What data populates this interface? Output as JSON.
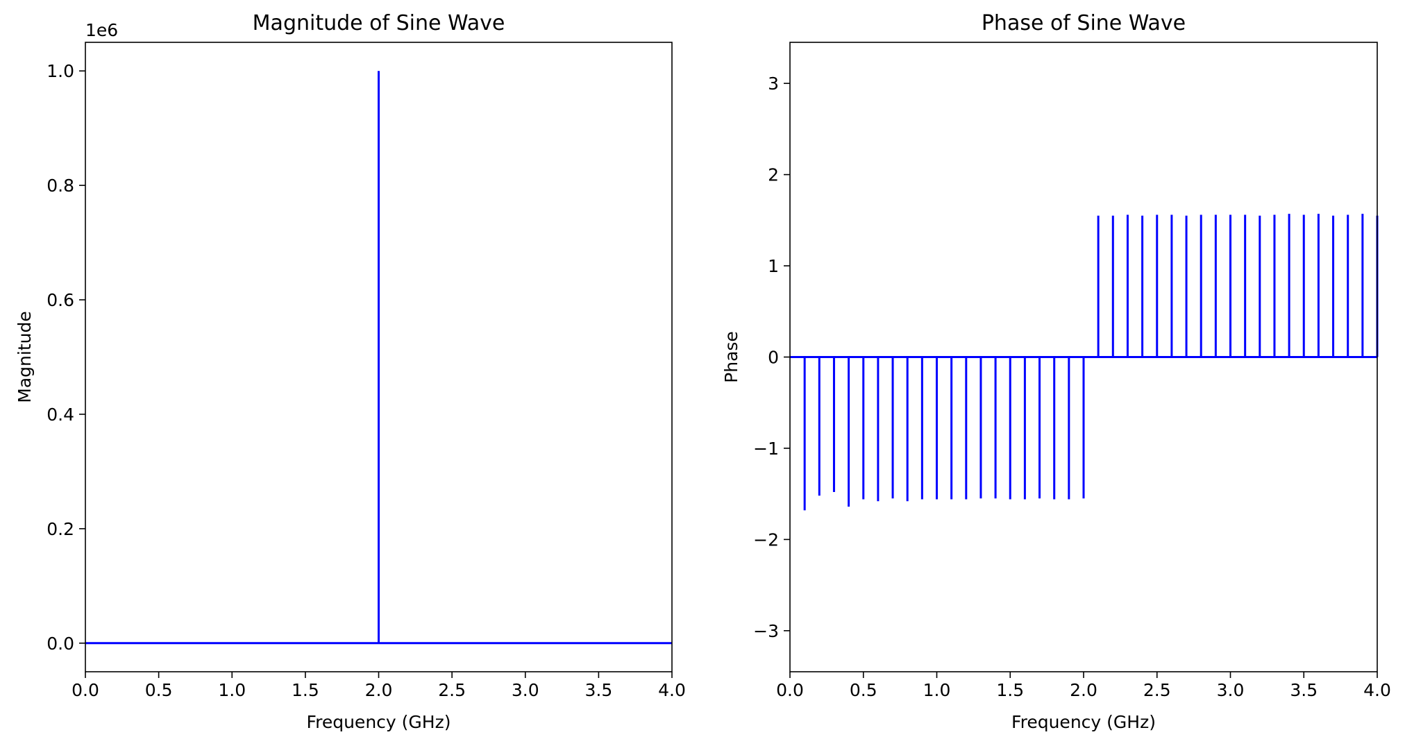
{
  "colors": {
    "stem": "#0000ff",
    "axes": "#000000",
    "background": "#ffffff"
  },
  "chart_data": [
    {
      "type": "stem",
      "title": "Magnitude of Sine Wave",
      "xlabel": "Frequency (GHz)",
      "ylabel": "Magnitude",
      "offset_label": "1e6",
      "xlim": [
        0,
        4
      ],
      "ylim": [
        -0.05,
        1.05
      ],
      "xticks": [
        0,
        0.5,
        1,
        1.5,
        2,
        2.5,
        3,
        3.5,
        4
      ],
      "xtick_labels": [
        "0.0",
        "0.5",
        "1.0",
        "1.5",
        "2.0",
        "2.5",
        "3.0",
        "3.5",
        "4.0"
      ],
      "yticks": [
        0,
        0.2,
        0.4,
        0.6,
        0.8,
        1
      ],
      "ytick_labels": [
        "0.0",
        "0.2",
        "0.4",
        "0.6",
        "0.8",
        "1.0"
      ],
      "baseline": 0,
      "series": [
        {
          "x": [
            2.0
          ],
          "y": [
            1.0
          ]
        }
      ]
    },
    {
      "type": "stem",
      "title": "Phase of Sine Wave",
      "xlabel": "Frequency (GHz)",
      "ylabel": "Phase",
      "xlim": [
        0,
        4
      ],
      "ylim": [
        -3.45,
        3.45
      ],
      "xticks": [
        0,
        0.5,
        1,
        1.5,
        2,
        2.5,
        3,
        3.5,
        4
      ],
      "xtick_labels": [
        "0.0",
        "0.5",
        "1.0",
        "1.5",
        "2.0",
        "2.5",
        "3.0",
        "3.5",
        "4.0"
      ],
      "yticks": [
        3,
        2,
        1,
        0,
        -1,
        -2,
        -3
      ],
      "ytick_labels": [
        "3",
        "2",
        "1",
        "0",
        "−1",
        "−2",
        "−3"
      ],
      "baseline": 0,
      "series": [
        {
          "x": [
            0.1,
            0.2,
            0.3,
            0.4,
            0.5,
            0.6,
            0.7,
            0.8,
            0.9,
            1.0,
            1.1,
            1.2,
            1.3,
            1.4,
            1.5,
            1.6,
            1.7,
            1.8,
            1.9,
            2.0,
            2.1,
            2.2,
            2.3,
            2.4,
            2.5,
            2.6,
            2.7,
            2.8,
            2.9,
            3.0,
            3.1,
            3.2,
            3.3,
            3.4,
            3.5,
            3.6,
            3.7,
            3.8,
            3.9,
            4.0
          ],
          "y": [
            -1.68,
            -1.52,
            -1.48,
            -1.64,
            -1.56,
            -1.58,
            -1.55,
            -1.58,
            -1.56,
            -1.56,
            -1.56,
            -1.56,
            -1.55,
            -1.55,
            -1.56,
            -1.56,
            -1.55,
            -1.56,
            -1.56,
            -1.55,
            1.55,
            1.55,
            1.56,
            1.55,
            1.56,
            1.56,
            1.55,
            1.56,
            1.56,
            1.56,
            1.56,
            1.55,
            1.56,
            1.57,
            1.56,
            1.57,
            1.55,
            1.56,
            1.57,
            1.55
          ]
        }
      ]
    }
  ]
}
